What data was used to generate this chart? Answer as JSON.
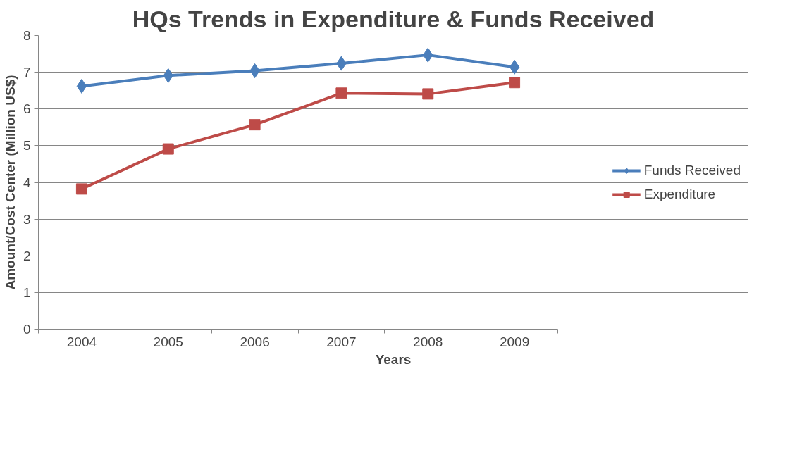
{
  "chart_data": {
    "type": "line",
    "title": "HQs Trends in Expenditure & Funds Received",
    "xlabel": "Years",
    "ylabel": "Amount/Cost Center (Million US$)",
    "categories": [
      "2004",
      "2005",
      "2006",
      "2007",
      "2008",
      "2009"
    ],
    "series": [
      {
        "name": "Funds Received",
        "color": "#4a7ebb",
        "marker": "diamond",
        "values": [
          6.62,
          6.91,
          7.04,
          7.24,
          7.47,
          7.14
        ]
      },
      {
        "name": "Expenditure",
        "color": "#be4b48",
        "marker": "square",
        "values": [
          3.82,
          4.91,
          5.57,
          6.43,
          6.41,
          6.72
        ]
      }
    ],
    "ylim": [
      0,
      8
    ],
    "yticks": [
      0,
      1,
      2,
      3,
      4,
      5,
      6,
      7,
      8
    ],
    "grid": "y",
    "legend": "right",
    "line_style": "solid"
  }
}
